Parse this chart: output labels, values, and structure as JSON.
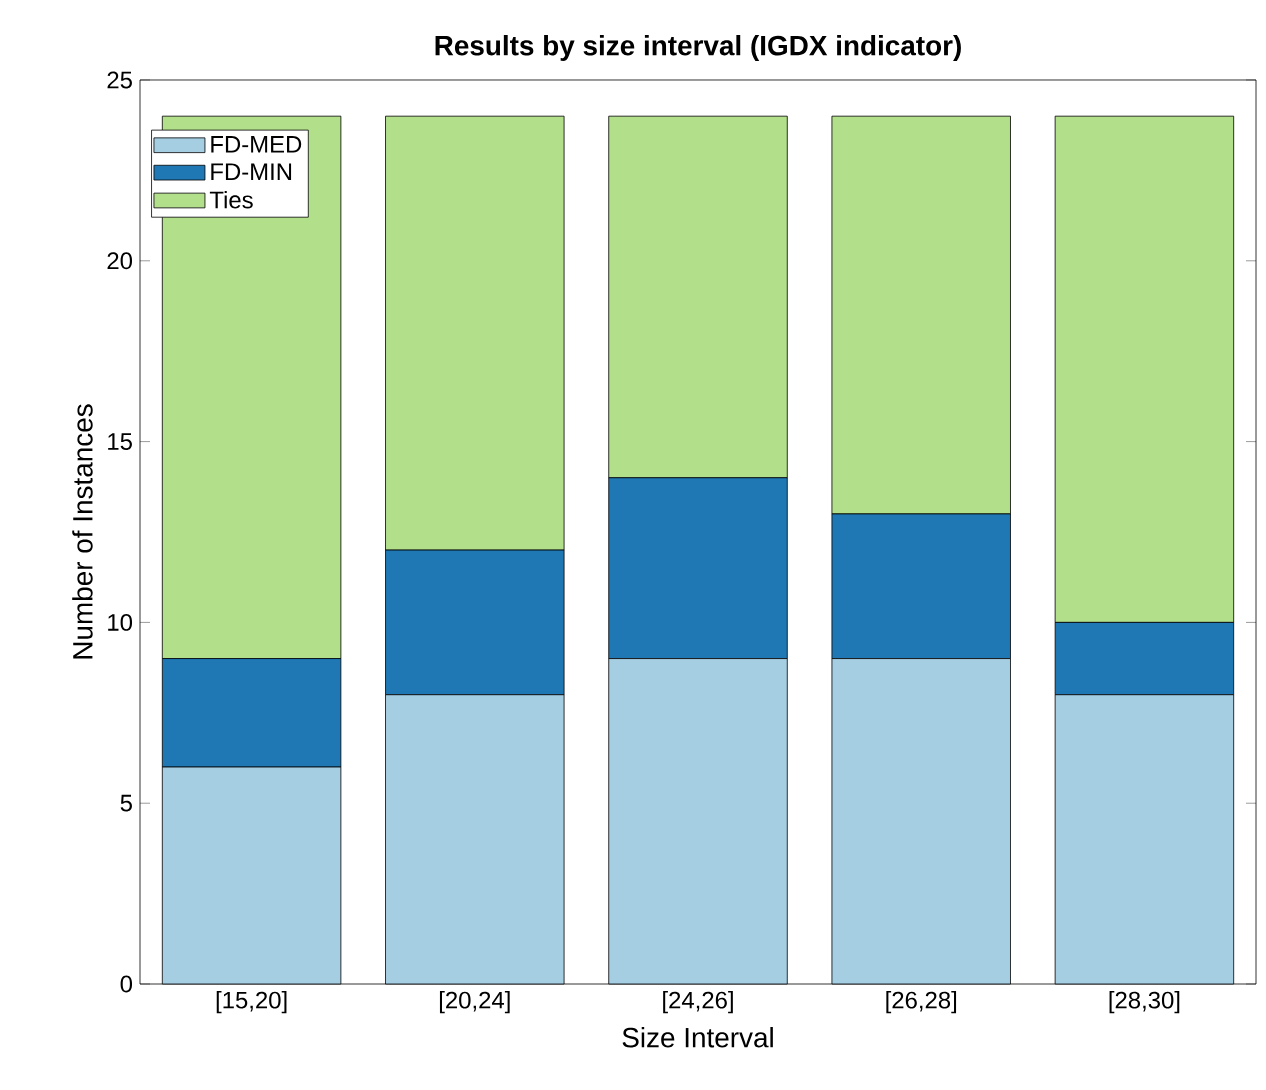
{
  "chart_data": {
    "type": "bar",
    "stacked": true,
    "title": "Results by size interval (IGDX indicator)",
    "xlabel": "Size Interval",
    "ylabel": "Number of Instances",
    "categories": [
      "[15,20]",
      "[20,24]",
      "[24,26]",
      "[26,28]",
      "[28,30]"
    ],
    "series": [
      {
        "name": "FD-MED",
        "color": "#a6cee3",
        "values": [
          6,
          8,
          9,
          9,
          8
        ]
      },
      {
        "name": "FD-MIN",
        "color": "#1f78b4",
        "values": [
          3,
          4,
          5,
          4,
          2
        ]
      },
      {
        "name": "Ties",
        "color": "#b2df8a",
        "values": [
          15,
          12,
          10,
          11,
          14
        ]
      }
    ],
    "ylim": [
      0,
      25
    ],
    "yticks": [
      0,
      5,
      10,
      15,
      20,
      25
    ],
    "grid": false,
    "legend": "top left"
  }
}
